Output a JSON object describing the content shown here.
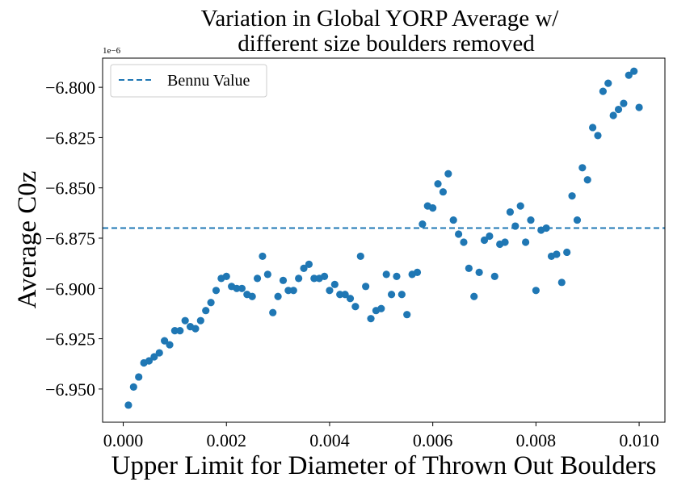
{
  "chart_data": {
    "type": "scatter",
    "title": "Variation in Global YORP Average w/\ndifferent size boulders removed",
    "xlabel": "Upper Limit for Diameter of Thrown Out Boulders",
    "ylabel": "Average C0z",
    "y_offset_label": "1e−6",
    "xlim": [
      -0.0004,
      0.0105
    ],
    "ylim": [
      -6.9665,
      -6.7855
    ],
    "x_ticks": [
      0.0,
      0.002,
      0.004,
      0.006,
      0.008,
      0.01
    ],
    "x_tick_labels": [
      "0.000",
      "0.002",
      "0.004",
      "0.006",
      "0.008",
      "0.010"
    ],
    "y_ticks": [
      -6.8,
      -6.825,
      -6.85,
      -6.875,
      -6.9,
      -6.925,
      -6.95
    ],
    "y_tick_labels": [
      "−6.800",
      "−6.825",
      "−6.850",
      "−6.875",
      "−6.900",
      "−6.925",
      "−6.950"
    ],
    "grid": false,
    "legend": {
      "position": "top-left",
      "entries": [
        {
          "label": "Bennu Value",
          "style": "dashed",
          "color": "#1f77b4"
        }
      ]
    },
    "reference_line": {
      "name": "Bennu Value",
      "y": -6.87,
      "color": "#1f77b4",
      "style": "dashed"
    },
    "series": [
      {
        "color": "#1f77b4",
        "x": [
          0.0001,
          0.0002,
          0.0003,
          0.0004,
          0.0005,
          0.0006,
          0.0007,
          0.0008,
          0.0009,
          0.001,
          0.0011,
          0.0012,
          0.0013,
          0.0014,
          0.0015,
          0.0016,
          0.0017,
          0.0018,
          0.0019,
          0.002,
          0.0021,
          0.0022,
          0.0023,
          0.0024,
          0.0025,
          0.0026,
          0.0027,
          0.0028,
          0.0029,
          0.003,
          0.0031,
          0.0032,
          0.0033,
          0.0034,
          0.0035,
          0.0036,
          0.0037,
          0.0038,
          0.0039,
          0.004,
          0.0041,
          0.0042,
          0.0043,
          0.0044,
          0.0045,
          0.0046,
          0.0047,
          0.0048,
          0.0049,
          0.005,
          0.0051,
          0.0052,
          0.0053,
          0.0054,
          0.0055,
          0.0056,
          0.0057,
          0.0058,
          0.0059,
          0.006,
          0.0061,
          0.0062,
          0.0063,
          0.0064,
          0.0065,
          0.0066,
          0.0067,
          0.0068,
          0.0069,
          0.007,
          0.0071,
          0.0072,
          0.0073,
          0.0074,
          0.0075,
          0.0076,
          0.0077,
          0.0078,
          0.0079,
          0.008,
          0.0081,
          0.0082,
          0.0083,
          0.0084,
          0.0085,
          0.0086,
          0.0087,
          0.0088,
          0.0089,
          0.009,
          0.0091,
          0.0092,
          0.0093,
          0.0094,
          0.0095,
          0.0096,
          0.0097,
          0.0098,
          0.0099,
          0.01
        ],
        "y": [
          -6.958,
          -6.949,
          -6.944,
          -6.937,
          -6.936,
          -6.934,
          -6.932,
          -6.926,
          -6.928,
          -6.921,
          -6.921,
          -6.916,
          -6.919,
          -6.92,
          -6.916,
          -6.911,
          -6.907,
          -6.901,
          -6.895,
          -6.894,
          -6.899,
          -6.9,
          -6.9,
          -6.903,
          -6.904,
          -6.895,
          -6.884,
          -6.893,
          -6.912,
          -6.904,
          -6.896,
          -6.901,
          -6.901,
          -6.895,
          -6.89,
          -6.888,
          -6.895,
          -6.895,
          -6.894,
          -6.901,
          -6.898,
          -6.903,
          -6.903,
          -6.905,
          -6.909,
          -6.884,
          -6.899,
          -6.915,
          -6.911,
          -6.91,
          -6.893,
          -6.903,
          -6.894,
          -6.903,
          -6.913,
          -6.893,
          -6.892,
          -6.868,
          -6.859,
          -6.86,
          -6.848,
          -6.852,
          -6.843,
          -6.866,
          -6.873,
          -6.877,
          -6.89,
          -6.904,
          -6.892,
          -6.876,
          -6.874,
          -6.894,
          -6.878,
          -6.877,
          -6.862,
          -6.869,
          -6.859,
          -6.877,
          -6.866,
          -6.901,
          -6.871,
          -6.87,
          -6.884,
          -6.883,
          -6.897,
          -6.882,
          -6.854,
          -6.866,
          -6.84,
          -6.846,
          -6.82,
          -6.824,
          -6.802,
          -6.798,
          -6.814,
          -6.811,
          -6.808,
          -6.794,
          -6.792,
          -6.81
        ]
      }
    ]
  }
}
